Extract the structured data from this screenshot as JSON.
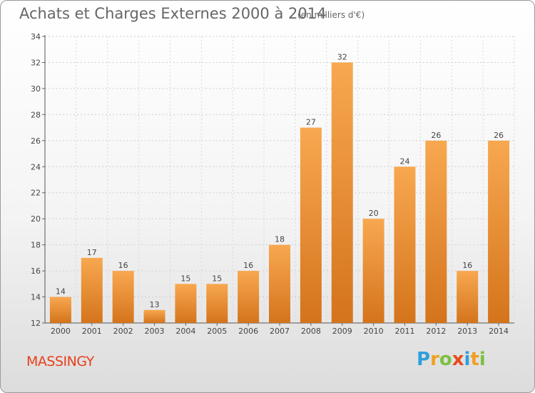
{
  "title": "Achats et Charges Externes 2000 à 2014",
  "unit": "(en milliers d'€)",
  "commune": "MASSINGY",
  "logo": {
    "letters": [
      "P",
      "r",
      "o",
      "x",
      "i",
      "t",
      "i"
    ],
    "colors": [
      "#2f9fdc",
      "#f0a020",
      "#7cc142",
      "#e84a1c",
      "#2f9fdc",
      "#f0a020",
      "#7cc142"
    ]
  },
  "colors": {
    "bar_light": "#f8a850",
    "bar_dark": "#d4741c",
    "title": "#666666",
    "commune": "#e8401c"
  },
  "chart_data": {
    "type": "bar",
    "categories": [
      "2000",
      "2001",
      "2002",
      "2003",
      "2004",
      "2005",
      "2006",
      "2007",
      "2008",
      "2009",
      "2010",
      "2011",
      "2012",
      "2013",
      "2014"
    ],
    "values": [
      14,
      17,
      16,
      13,
      15,
      15,
      16,
      18,
      27,
      32,
      20,
      24,
      26,
      16,
      26
    ],
    "ylim": [
      12,
      34
    ],
    "yticks": [
      12,
      14,
      16,
      18,
      20,
      22,
      24,
      26,
      28,
      30,
      32,
      34
    ],
    "grid": true,
    "xlabel": "",
    "ylabel": ""
  }
}
